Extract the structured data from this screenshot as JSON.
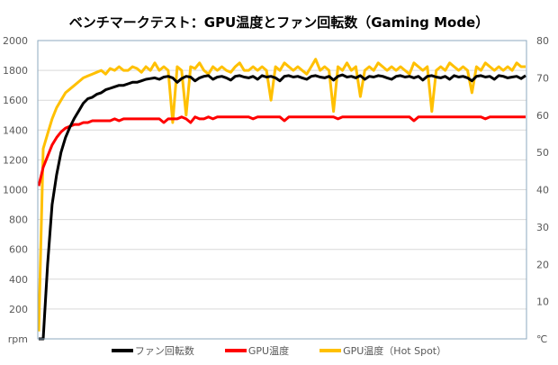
{
  "chart_data": {
    "type": "line",
    "title": "ベンチマークテスト：GPU温度とファン回転数（Gaming Mode）",
    "xlabel": "",
    "ylabel_left": "rpm",
    "ylabel_right": "℃",
    "ylim_left": [
      0,
      2000
    ],
    "ylim_right": [
      0,
      80
    ],
    "yticks_left": [
      "rpm",
      "200",
      "400",
      "600",
      "800",
      "1000",
      "1200",
      "1400",
      "1600",
      "1800",
      "2000"
    ],
    "yticks_right": [
      "℃",
      "10",
      "20",
      "30",
      "40",
      "50",
      "60",
      "70",
      "80"
    ],
    "grid": true,
    "legend_position": "bottom",
    "series": [
      {
        "name": "ファン回転数",
        "axis": "left",
        "color": "#000000",
        "values": [
          0,
          0,
          500,
          900,
          1100,
          1250,
          1350,
          1420,
          1480,
          1530,
          1580,
          1610,
          1620,
          1640,
          1650,
          1670,
          1680,
          1690,
          1700,
          1700,
          1710,
          1720,
          1720,
          1730,
          1740,
          1745,
          1750,
          1740,
          1755,
          1760,
          1750,
          1720,
          1745,
          1760,
          1755,
          1730,
          1750,
          1760,
          1765,
          1740,
          1755,
          1760,
          1750,
          1735,
          1760,
          1765,
          1755,
          1750,
          1760,
          1740,
          1765,
          1755,
          1760,
          1750,
          1730,
          1760,
          1765,
          1755,
          1760,
          1750,
          1740,
          1760,
          1765,
          1755,
          1750,
          1760,
          1735,
          1760,
          1770,
          1755,
          1760,
          1750,
          1765,
          1740,
          1760,
          1755,
          1765,
          1760,
          1750,
          1740,
          1760,
          1765,
          1755,
          1760,
          1750,
          1760,
          1735,
          1760,
          1765,
          1755,
          1750,
          1760,
          1740,
          1765,
          1755,
          1760,
          1750,
          1730,
          1760,
          1765,
          1755,
          1760,
          1740,
          1765,
          1760,
          1750,
          1755,
          1760,
          1745,
          1765
        ]
      },
      {
        "name": "GPU温度",
        "axis": "right",
        "color": "#FF0000",
        "values": [
          41,
          46,
          49,
          52,
          54,
          55.5,
          56.5,
          57,
          57.5,
          57.5,
          58,
          58,
          58.5,
          58.5,
          58.5,
          58.5,
          58.5,
          59,
          58.5,
          59,
          59,
          59,
          59,
          59,
          59,
          59,
          59,
          59,
          58,
          59,
          59,
          59,
          59.5,
          59,
          58,
          59.5,
          59,
          59,
          59.5,
          59,
          59.5,
          59.5,
          59.5,
          59.5,
          59.5,
          59.5,
          59.5,
          59.5,
          59,
          59.5,
          59.5,
          59.5,
          59.5,
          59.5,
          59.5,
          58.5,
          59.5,
          59.5,
          59.5,
          59.5,
          59.5,
          59.5,
          59.5,
          59.5,
          59.5,
          59.5,
          59.5,
          59,
          59.5,
          59.5,
          59.5,
          59.5,
          59.5,
          59.5,
          59.5,
          59.5,
          59.5,
          59.5,
          59.5,
          59.5,
          59.5,
          59.5,
          59.5,
          59.5,
          58.5,
          59.5,
          59.5,
          59.5,
          59.5,
          59.5,
          59.5,
          59.5,
          59.5,
          59.5,
          59.5,
          59.5,
          59.5,
          59.5,
          59.5,
          59.5,
          59,
          59.5,
          59.5,
          59.5,
          59.5,
          59.5,
          59.5,
          59.5,
          59.5,
          59.5
        ]
      },
      {
        "name": "GPU温度（Hot Spot）",
        "axis": "right",
        "color": "#FFC000",
        "values": [
          2,
          51,
          55,
          59,
          62,
          64,
          66,
          67,
          68,
          69,
          70,
          70.5,
          71,
          71.5,
          72,
          71,
          72.5,
          72,
          73,
          72,
          72,
          73,
          72.5,
          71.5,
          73,
          72,
          74,
          72,
          73,
          72,
          58,
          73,
          72,
          60,
          73,
          72.5,
          74,
          72,
          71,
          73,
          72,
          73,
          72,
          71.5,
          73,
          74,
          72,
          72,
          73,
          72,
          73,
          72,
          64,
          73,
          72,
          74,
          73,
          72,
          73,
          72,
          71,
          73,
          75,
          72,
          73,
          72,
          61,
          73,
          72,
          74,
          72,
          73,
          65,
          72,
          73,
          72,
          74,
          73,
          72,
          73,
          72,
          73,
          72,
          71,
          74,
          73,
          72,
          73,
          61,
          72,
          73,
          72,
          74,
          73,
          72,
          73,
          72,
          66,
          73,
          72,
          74,
          73,
          72,
          73,
          72,
          73,
          72,
          74,
          73,
          73
        ]
      }
    ]
  }
}
